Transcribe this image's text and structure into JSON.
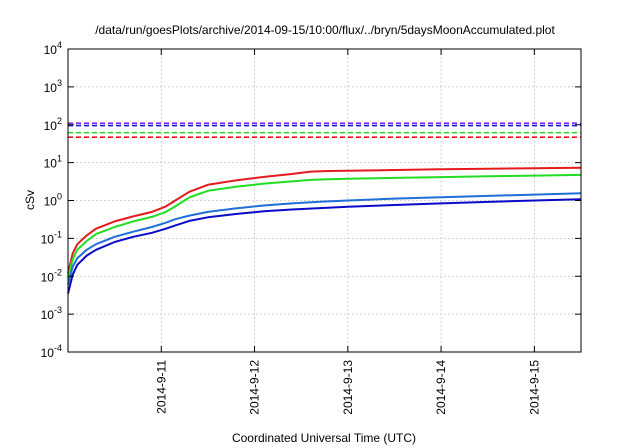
{
  "chart_data": {
    "type": "line",
    "title": "/data/run/goesPlots/archive/2014-09-15/10:00/flux/../bryn/5daysMoonAccumulated.plot",
    "xlabel": "Coordinated Universal Time (UTC)",
    "ylabel": "cSv",
    "yscale": "log",
    "ylim": [
      0.0001,
      10000
    ],
    "xlim": [
      0,
      5.5
    ],
    "grid": true,
    "x_ticks": [
      {
        "x": 1,
        "label": "2014-9-11"
      },
      {
        "x": 2,
        "label": "2014-9-12"
      },
      {
        "x": 3,
        "label": "2014-9-13"
      },
      {
        "x": 4,
        "label": "2014-9-14"
      },
      {
        "x": 5,
        "label": "2014-9-15"
      }
    ],
    "y_ticks": [
      {
        "y": 0.0001,
        "base": "10",
        "exp": "-4"
      },
      {
        "y": 0.001,
        "base": "10",
        "exp": "-3"
      },
      {
        "y": 0.01,
        "base": "10",
        "exp": "-2"
      },
      {
        "y": 0.1,
        "base": "10",
        "exp": "-1"
      },
      {
        "y": 1,
        "base": "10",
        "exp": "0"
      },
      {
        "y": 10,
        "base": "10",
        "exp": "1"
      },
      {
        "y": 100,
        "base": "10",
        "exp": "2"
      },
      {
        "y": 1000,
        "base": "10",
        "exp": "3"
      },
      {
        "y": 10000,
        "base": "10",
        "exp": "4"
      }
    ],
    "thresholds": [
      {
        "y": 110,
        "color": "#8a2be2"
      },
      {
        "y": 95,
        "color": "#1a1ad6"
      },
      {
        "y": 62,
        "color": "#22dd22"
      },
      {
        "y": 47,
        "color": "#e41a1c"
      }
    ],
    "series": [
      {
        "color": "#e41a1c",
        "x": [
          0,
          0.05,
          0.1,
          0.2,
          0.3,
          0.5,
          0.7,
          0.9,
          1.05,
          1.15,
          1.3,
          1.5,
          1.8,
          2.1,
          2.4,
          2.6,
          2.8,
          3.0,
          3.5,
          4.0,
          4.5,
          5.0,
          5.5
        ],
        "y": [
          0.012,
          0.04,
          0.07,
          0.12,
          0.18,
          0.28,
          0.38,
          0.5,
          0.7,
          1.0,
          1.7,
          2.6,
          3.4,
          4.2,
          5.0,
          5.8,
          6.0,
          6.1,
          6.4,
          6.7,
          6.9,
          7.1,
          7.3
        ]
      },
      {
        "color": "#22dd22",
        "x": [
          0,
          0.05,
          0.1,
          0.2,
          0.3,
          0.5,
          0.7,
          0.9,
          1.05,
          1.15,
          1.3,
          1.5,
          1.8,
          2.1,
          2.4,
          2.6,
          2.8,
          3.0,
          3.5,
          4.0,
          4.5,
          5.0,
          5.5
        ],
        "y": [
          0.009,
          0.028,
          0.05,
          0.085,
          0.13,
          0.2,
          0.28,
          0.37,
          0.5,
          0.7,
          1.2,
          1.8,
          2.3,
          2.8,
          3.2,
          3.5,
          3.65,
          3.75,
          3.95,
          4.15,
          4.35,
          4.55,
          4.75
        ]
      },
      {
        "color": "#1e6fd9",
        "x": [
          0,
          0.05,
          0.1,
          0.2,
          0.3,
          0.5,
          0.7,
          0.9,
          1.05,
          1.15,
          1.3,
          1.5,
          1.8,
          2.1,
          2.4,
          2.7,
          3.0,
          3.5,
          4.0,
          4.5,
          5.0,
          5.5
        ],
        "y": [
          0.006,
          0.018,
          0.03,
          0.05,
          0.07,
          0.11,
          0.15,
          0.2,
          0.26,
          0.32,
          0.4,
          0.5,
          0.62,
          0.74,
          0.84,
          0.93,
          1.0,
          1.12,
          1.22,
          1.32,
          1.43,
          1.55
        ]
      },
      {
        "color": "#0a0ac8",
        "x": [
          0,
          0.05,
          0.1,
          0.2,
          0.3,
          0.5,
          0.7,
          0.9,
          1.05,
          1.15,
          1.3,
          1.5,
          1.8,
          2.1,
          2.4,
          2.7,
          3.0,
          3.5,
          4.0,
          4.5,
          5.0,
          5.5
        ],
        "y": [
          0.0035,
          0.011,
          0.02,
          0.035,
          0.05,
          0.08,
          0.11,
          0.14,
          0.18,
          0.22,
          0.29,
          0.36,
          0.44,
          0.52,
          0.58,
          0.63,
          0.68,
          0.76,
          0.84,
          0.92,
          1.0,
          1.08
        ]
      }
    ]
  }
}
